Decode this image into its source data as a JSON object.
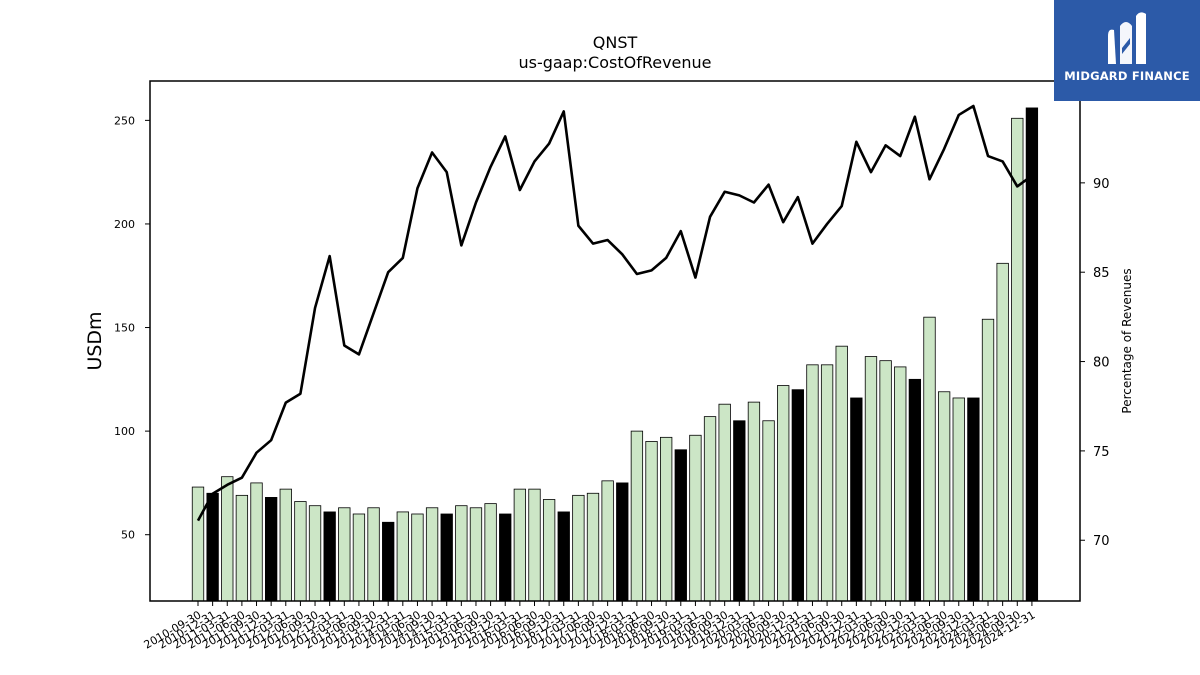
{
  "brand": {
    "name": "MIDGARD FINANCE",
    "logo_icon": "midgard-m-logo",
    "background": "#2c5aa8"
  },
  "chart_data": {
    "type": "bar+line",
    "title": "QNST",
    "subtitle": "us-gaap:CostOfRevenue",
    "ylabel": "USDm",
    "ylabel_right": "Percentage of Revenues",
    "ylim": [
      18,
      269
    ],
    "ylim_right": [
      66.6,
      95.7
    ],
    "yticks": [
      50,
      100,
      150,
      200,
      250
    ],
    "yticks_right": [
      70,
      75,
      80,
      85,
      90
    ],
    "grid": false,
    "colors": {
      "quarter_bar": "#cce6c6",
      "annual_bar": "#000000",
      "line": "#000000"
    },
    "categories": [
      "2010-09-30",
      "2010-12-31",
      "2011-03-31",
      "2011-06-30",
      "2011-09-30",
      "2011-12-31",
      "2012-03-31",
      "2012-06-30",
      "2012-09-30",
      "2012-12-31",
      "2013-03-31",
      "2013-06-30",
      "2013-09-30",
      "2013-12-31",
      "2014-03-31",
      "2014-06-30",
      "2014-09-30",
      "2014-12-31",
      "2015-03-31",
      "2015-06-30",
      "2015-09-30",
      "2015-12-31",
      "2016-03-31",
      "2016-06-30",
      "2016-09-30",
      "2016-12-31",
      "2017-03-31",
      "2017-06-30",
      "2017-09-30",
      "2017-12-31",
      "2018-03-31",
      "2018-06-30",
      "2018-09-30",
      "2018-12-31",
      "2019-03-31",
      "2019-06-30",
      "2019-09-30",
      "2019-12-31",
      "2020-03-31",
      "2020-06-30",
      "2020-09-30",
      "2020-12-31",
      "2021-03-31",
      "2021-06-30",
      "2021-09-30",
      "2021-12-31",
      "2022-03-31",
      "2022-06-30",
      "2022-09-30",
      "2022-12-31",
      "2023-03-31",
      "2023-06-30",
      "2023-09-30",
      "2023-12-31",
      "2024-03-31",
      "2024-06-30",
      "2024-09-30",
      "2024-12-31"
    ],
    "series": [
      {
        "type": "bar",
        "values": [
          73,
          70,
          78,
          69,
          75,
          68,
          72,
          66,
          64,
          61,
          63,
          60,
          63,
          56,
          61,
          60,
          63,
          60,
          64,
          63,
          65,
          60,
          72,
          72,
          67,
          61,
          69,
          70,
          76,
          75,
          100,
          95,
          97,
          91,
          98,
          107,
          113,
          105,
          114,
          105,
          122,
          120,
          132,
          132,
          141,
          116,
          136,
          134,
          131,
          125,
          155,
          119,
          116,
          116,
          154,
          181,
          251,
          256
        ],
        "annual": [
          false,
          true,
          false,
          false,
          false,
          true,
          false,
          false,
          false,
          true,
          false,
          false,
          false,
          true,
          false,
          false,
          false,
          true,
          false,
          false,
          false,
          true,
          false,
          false,
          false,
          true,
          false,
          false,
          false,
          true,
          false,
          false,
          false,
          true,
          false,
          false,
          false,
          true,
          false,
          false,
          false,
          true,
          false,
          false,
          false,
          true,
          false,
          false,
          false,
          true,
          false,
          false,
          false,
          true,
          false,
          false,
          false,
          true
        ]
      },
      {
        "type": "line",
        "axis": "right",
        "values": [
          71.1,
          72.6,
          73.1,
          73.5,
          74.9,
          75.6,
          77.7,
          78.2,
          83.0,
          85.9,
          80.9,
          80.4,
          82.7,
          85.0,
          85.8,
          89.7,
          91.7,
          90.6,
          86.5,
          88.9,
          90.9,
          92.6,
          89.6,
          91.2,
          92.2,
          94.0,
          87.6,
          86.6,
          86.8,
          86.0,
          84.9,
          85.1,
          85.8,
          87.3,
          84.7,
          88.1,
          89.5,
          89.3,
          88.9,
          89.9,
          87.8,
          89.2,
          86.6,
          87.7,
          88.7,
          92.3,
          90.6,
          92.1,
          91.5,
          93.7,
          90.2,
          91.9,
          93.8,
          94.3,
          91.5,
          91.2,
          89.8,
          90.4
        ]
      }
    ]
  }
}
